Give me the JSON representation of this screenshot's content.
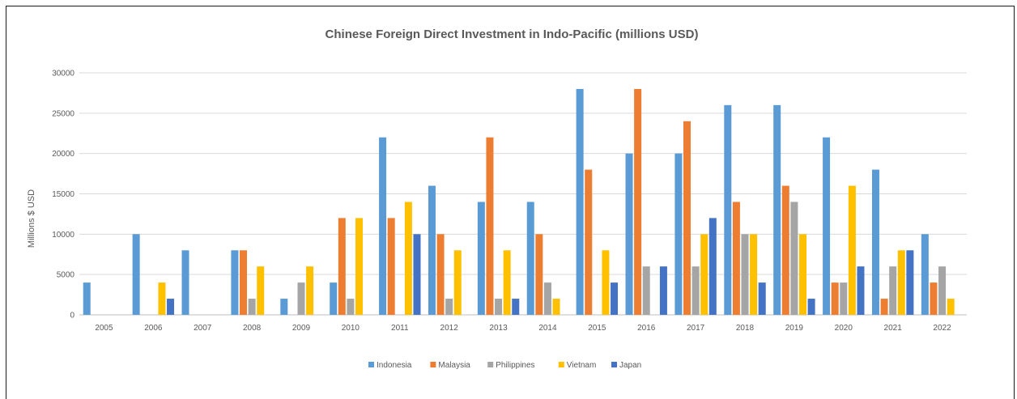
{
  "chart_data": {
    "type": "bar",
    "title": "Chinese Foreign Direct Investment in Indo-Pacific (millions USD)",
    "xlabel": "",
    "ylabel": "Millions $ USD",
    "ylim": [
      0,
      30000
    ],
    "yticks": [
      0,
      5000,
      10000,
      15000,
      20000,
      25000,
      30000
    ],
    "grid": true,
    "legend_position": "bottom",
    "categories": [
      "2005",
      "2006",
      "2007",
      "2008",
      "2009",
      "2010",
      "2011",
      "2012",
      "2013",
      "2014",
      "2015",
      "2016",
      "2017",
      "2018",
      "2019",
      "2020",
      "2021",
      "2022"
    ],
    "series": [
      {
        "name": "Indonesia",
        "color": "#5B9BD5",
        "values": [
          4000,
          10000,
          8000,
          8000,
          2000,
          4000,
          22000,
          16000,
          14000,
          14000,
          28000,
          20000,
          20000,
          26000,
          26000,
          22000,
          18000,
          10000
        ]
      },
      {
        "name": "Malaysia",
        "color": "#ED7D31",
        "values": [
          0,
          0,
          0,
          8000,
          0,
          12000,
          12000,
          10000,
          22000,
          10000,
          18000,
          28000,
          24000,
          14000,
          16000,
          4000,
          2000,
          4000
        ]
      },
      {
        "name": "Philippines",
        "color": "#A5A5A5",
        "values": [
          0,
          0,
          0,
          2000,
          4000,
          2000,
          0,
          2000,
          2000,
          4000,
          0,
          6000,
          6000,
          10000,
          14000,
          4000,
          6000,
          6000
        ]
      },
      {
        "name": "Vietnam",
        "color": "#FFC000",
        "values": [
          0,
          4000,
          0,
          6000,
          6000,
          12000,
          14000,
          8000,
          8000,
          2000,
          8000,
          0,
          10000,
          10000,
          10000,
          16000,
          8000,
          2000
        ]
      },
      {
        "name": "Japan",
        "color": "#4472C4",
        "values": [
          0,
          2000,
          0,
          0,
          0,
          0,
          10000,
          0,
          2000,
          0,
          4000,
          6000,
          12000,
          4000,
          2000,
          6000,
          8000,
          0
        ]
      }
    ]
  }
}
